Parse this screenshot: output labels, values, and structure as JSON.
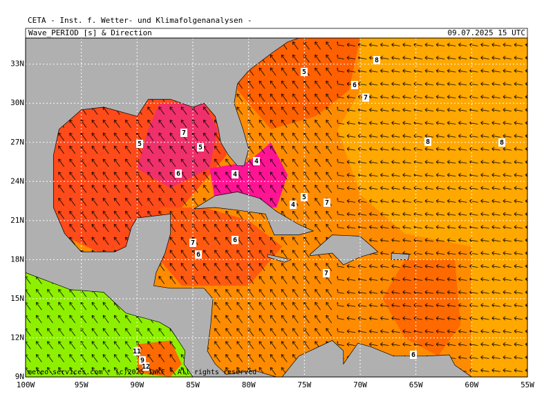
{
  "header": {
    "institute": "CETA - Inst. f. Wetter- und Klimafolgenanalysen -",
    "product": "Wave_PERIOD [s] & Direction",
    "timestamp": "09.07.2025 15 UTC"
  },
  "map": {
    "lonlim": [
      -100,
      -55
    ],
    "latlim": [
      9,
      35
    ],
    "lon_ticks": [
      {
        "value": -100,
        "label": "100W"
      },
      {
        "value": -95,
        "label": "95W"
      },
      {
        "value": -90,
        "label": "90W"
      },
      {
        "value": -85,
        "label": "85W"
      },
      {
        "value": -80,
        "label": "80W"
      },
      {
        "value": -75,
        "label": "75W"
      },
      {
        "value": -70,
        "label": "70W"
      },
      {
        "value": -65,
        "label": "65W"
      },
      {
        "value": -60,
        "label": "60W"
      },
      {
        "value": -55,
        "label": "55W"
      }
    ],
    "lat_ticks": [
      {
        "value": 9,
        "label": "9N"
      },
      {
        "value": 12,
        "label": "12N"
      },
      {
        "value": 15,
        "label": "15N"
      },
      {
        "value": 18,
        "label": "18N"
      },
      {
        "value": 21,
        "label": "21N"
      },
      {
        "value": 24,
        "label": "24N"
      },
      {
        "value": 27,
        "label": "27N"
      },
      {
        "value": 30,
        "label": "30N"
      },
      {
        "value": 33,
        "label": "33N"
      }
    ],
    "contour_labels": [
      7,
      5,
      5,
      6,
      5,
      8,
      6,
      7,
      8,
      8,
      4,
      4,
      4,
      5,
      7,
      7,
      6,
      6,
      7,
      11,
      9,
      12,
      6
    ]
  },
  "footer": {
    "copyright": "meteo-services.com * (c)2025 IWKF * All rights reserved"
  }
}
